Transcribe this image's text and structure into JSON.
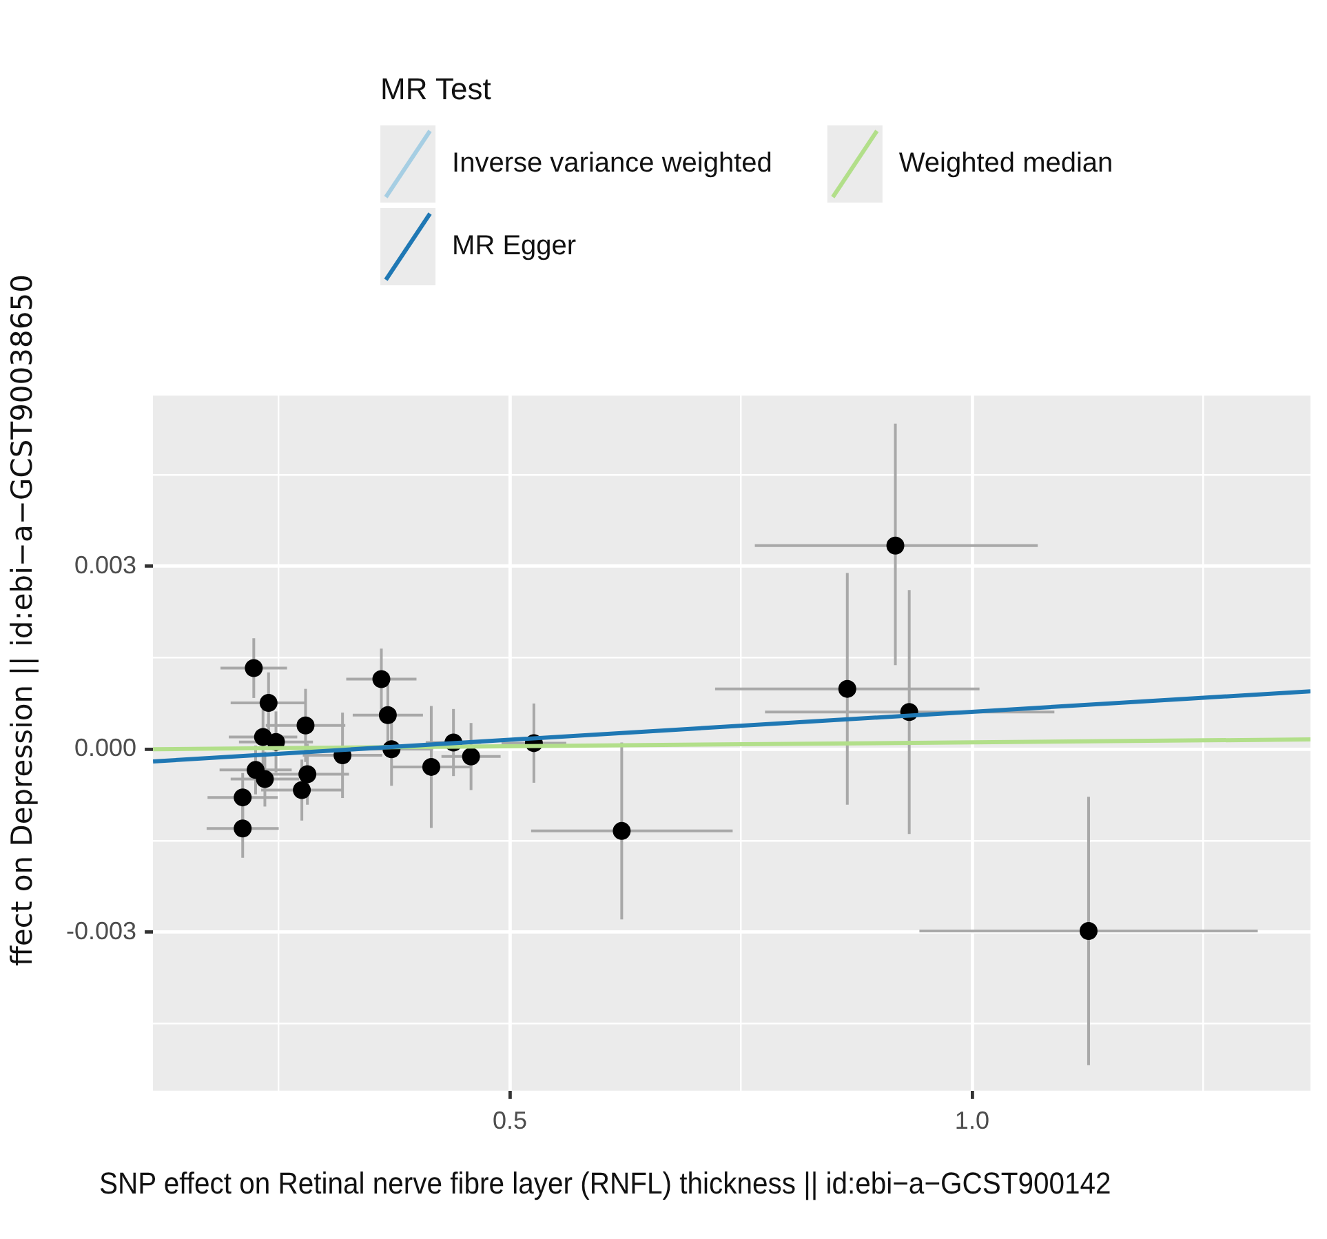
{
  "chart_data": {
    "type": "scatter",
    "xlabel": "SNP effect on Retinal nerve fibre layer (RNFL) thickness || id:ebi−a−GCST900142",
    "ylabel": "ffect on Depression || id:ebi−a−GCST90038650",
    "legend_title": "MR Test",
    "legend": "top",
    "grid": true,
    "marker": "circle",
    "xlim": [
      0.114,
      1.366
    ],
    "xticks": [
      {
        "value": 0.25,
        "label": null
      },
      0.5,
      {
        "value": 0.75,
        "label": null
      },
      {
        "value": 1,
        "label": "1.0"
      },
      {
        "value": 1.25,
        "label": null
      }
    ],
    "ylim": [
      -0.0056,
      0.0058
    ],
    "yticks": [
      {
        "value": -0.0045,
        "label": null
      },
      {
        "value": -0.003,
        "label": "-0.003"
      },
      {
        "value": -0.0015,
        "label": null
      },
      {
        "value": 0,
        "label": "0.000"
      },
      {
        "value": 0.0015,
        "label": null
      },
      0.003,
      {
        "value": 0.0045,
        "label": null
      }
    ],
    "series": [
      {
        "color": "#000000",
        "x": [
          0.223,
          0.239,
          0.233,
          0.247,
          0.279,
          0.225,
          0.235,
          0.211,
          0.211,
          0.281,
          0.275,
          0.319,
          0.361,
          0.368,
          0.372,
          0.415,
          0.439,
          0.458,
          0.526,
          0.621,
          0.917,
          0.865,
          0.932,
          1.126
        ],
        "values": [
          0.00133,
          0.00076,
          0.0002,
          0.00012,
          0.00039,
          -0.00034,
          -0.00049,
          -0.00079,
          -0.0013,
          -0.00041,
          -0.00067,
          -0.0001,
          0.00115,
          0.00056,
          0,
          -0.00029,
          0.00011,
          -0.00012,
          0.0001,
          -0.00134,
          0.00334,
          0.00099,
          0.00061,
          -0.00298
        ],
        "errors": [
          0.00049,
          0.0005,
          0.0005,
          0.0005,
          0.0006,
          0.0004,
          0.00045,
          0.0004,
          0.00048,
          0.0005,
          0.0005,
          0.0007,
          0.0005,
          0.0005,
          0.0006,
          0.001,
          0.00055,
          0.00055,
          0.00065,
          0.00145,
          [
            0.00138,
            0.00534
          ],
          0.0019,
          0.002,
          0.0022
        ],
        "xerrors": [
          0.036,
          0.041,
          0.037,
          0.04,
          0.043,
          0.039,
          0.037,
          0.038,
          0.039,
          0.045,
          0.044,
          0.043,
          0.038,
          0.038,
          0.045,
          0.043,
          0.03,
          0.032,
          0.035,
          [
            0.523,
            0.741
          ],
          [
            0.765,
            1.071
          ],
          0.143,
          [
            0.776,
            1.089
          ],
          0.183
        ]
      },
      {
        "type": "line",
        "marker": "none",
        "name": "Inverse variance weighted",
        "color": "#a6cee3",
        "values": [
          null,
          null
        ]
      },
      {
        "type": "line",
        "marker": "none",
        "name": "MR Egger",
        "color": "#1f78b4",
        "x": [
          0.114,
          1.366
        ],
        "values": [
          -0.0002,
          0.00095
        ]
      },
      {
        "type": "line",
        "marker": "none",
        "name": "Weighted median",
        "color": "#b2df8a",
        "x": [
          0.114,
          1.366
        ],
        "values": [
          0,
          0.00016
        ]
      }
    ]
  }
}
